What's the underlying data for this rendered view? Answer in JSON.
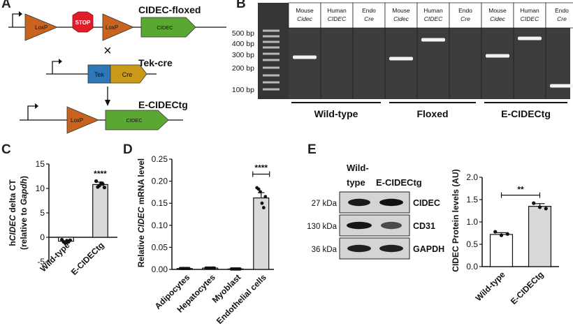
{
  "panel_labels": {
    "a": "A",
    "b": "B",
    "c": "C",
    "d": "D",
    "e": "E"
  },
  "panel_a": {
    "loxp": "LoxP",
    "stop": "STOP",
    "cidec": "CIDEC",
    "construct1": "CIDEC-floxed",
    "cross": "×",
    "tek": "Tek",
    "cre": "Cre",
    "construct2": "Tek-cre",
    "construct3": "E-CIDECtg",
    "colors": {
      "loxp": "#c8641f",
      "stop": "#e11d2a",
      "cidec": "#5aa831",
      "tek": "#2e78b7",
      "cre": "#c99a1a"
    }
  },
  "panel_b": {
    "ladder": [
      "500 bp",
      "400 bp",
      "300 bp",
      "200 bp",
      "100 bp"
    ],
    "lanes": [
      {
        "l1": "Mouse",
        "l2": "Cidec"
      },
      {
        "l1": "Human",
        "l2": "CIDEC"
      },
      {
        "l1": "Endo",
        "l2": "Cre"
      },
      {
        "l1": "Mouse",
        "l2": "Cidec"
      },
      {
        "l1": "Human",
        "l2": "CIDEC"
      },
      {
        "l1": "Endo",
        "l2": "Cre"
      },
      {
        "l1": "Mouse",
        "l2": "Cidec"
      },
      {
        "l1": "Human",
        "l2": "CIDEC"
      },
      {
        "l1": "Endo",
        "l2": "Cre"
      }
    ],
    "groups": [
      "Wild-type",
      "Floxed",
      "E-CIDECtg"
    ]
  },
  "chart_data": [
    {
      "panel": "C",
      "type": "bar",
      "categories": [
        "Wild-type",
        "E-CIDECtg"
      ],
      "values": [
        -0.8,
        10.8
      ],
      "errors": [
        0.4,
        0.5
      ],
      "points": [
        [
          -0.5,
          -0.9,
          -1.2,
          -0.7,
          -0.9,
          -0.6
        ],
        [
          11.5,
          10.3,
          10.6,
          11.1,
          10.9,
          10.2
        ]
      ],
      "ylabel_pre": "h",
      "ylabel_it": "CIDEC",
      "ylabel_post": " delta CT",
      "ylabel2_pre": "(relative to ",
      "ylabel2_it": "Gapdh",
      "ylabel2_post": ")",
      "ylim": [
        -5,
        15
      ],
      "yticks": [
        "-5",
        "0",
        "5",
        "10",
        "15"
      ],
      "significance": "****"
    },
    {
      "panel": "D",
      "type": "bar",
      "categories": [
        "Adipocytes",
        "Hepatocytes",
        "Myoblast",
        "Endothelial cells"
      ],
      "values": [
        0.002,
        0.003,
        0.001,
        0.162
      ],
      "errors": [
        0.001,
        0.001,
        0.001,
        0.012
      ],
      "ylabel_pre": "Relative ",
      "ylabel_it": "CIDEC",
      "ylabel_post": " mRNA level",
      "ylim": [
        0,
        0.25
      ],
      "yticks": [
        "0.00",
        "0.05",
        "0.10",
        "0.15",
        "0.20",
        "0.25"
      ],
      "significance": "****"
    },
    {
      "panel": "E",
      "type": "bar",
      "categories": [
        "Wild-type",
        "E-CIDECtg"
      ],
      "values": [
        0.72,
        1.35
      ],
      "errors": [
        0.04,
        0.06
      ],
      "points": [
        [
          0.78,
          0.7,
          0.73
        ],
        [
          1.42,
          1.33,
          1.3
        ]
      ],
      "ylabel": "CIDEC Protein levels (AU)",
      "ylim": [
        0,
        2.0
      ],
      "yticks": [
        "0.0",
        "0.5",
        "1.0",
        "1.5",
        "2.0"
      ],
      "significance": "**"
    }
  ],
  "panel_e_blot": {
    "header1": "Wild-",
    "header2": "type",
    "header3": "E-CIDECtg",
    "rows": [
      {
        "size": "27 kDa",
        "protein": "CIDEC"
      },
      {
        "size": "130 kDa",
        "protein": "CD31"
      },
      {
        "size": "36 kDa",
        "protein": "GAPDH"
      }
    ]
  }
}
